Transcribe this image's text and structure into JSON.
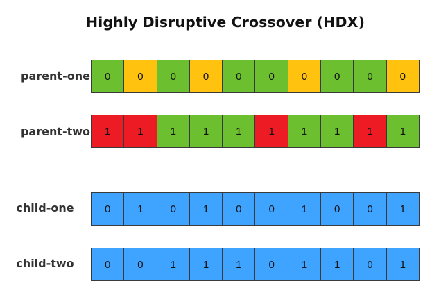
{
  "title": "Highly Disruptive Crossover (HDX)",
  "colors": {
    "green": "#6cbf2e",
    "yellow": "#ffc20e",
    "red": "#ed1c24",
    "blue": "#3fa4ff",
    "cell_border": "#3a3a3a"
  },
  "rows": [
    {
      "label": "parent-one",
      "cells": [
        {
          "value": "0",
          "color": "green"
        },
        {
          "value": "0",
          "color": "yellow"
        },
        {
          "value": "0",
          "color": "green"
        },
        {
          "value": "0",
          "color": "yellow"
        },
        {
          "value": "0",
          "color": "green"
        },
        {
          "value": "0",
          "color": "green"
        },
        {
          "value": "0",
          "color": "yellow"
        },
        {
          "value": "0",
          "color": "green"
        },
        {
          "value": "0",
          "color": "green"
        },
        {
          "value": "0",
          "color": "yellow"
        }
      ]
    },
    {
      "label": "parent-two",
      "cells": [
        {
          "value": "1",
          "color": "red"
        },
        {
          "value": "1",
          "color": "red"
        },
        {
          "value": "1",
          "color": "green"
        },
        {
          "value": "1",
          "color": "green"
        },
        {
          "value": "1",
          "color": "green"
        },
        {
          "value": "1",
          "color": "red"
        },
        {
          "value": "1",
          "color": "green"
        },
        {
          "value": "1",
          "color": "green"
        },
        {
          "value": "1",
          "color": "red"
        },
        {
          "value": "1",
          "color": "green"
        }
      ]
    },
    {
      "label": "child-one",
      "cells": [
        {
          "value": "0",
          "color": "blue"
        },
        {
          "value": "1",
          "color": "blue"
        },
        {
          "value": "0",
          "color": "blue"
        },
        {
          "value": "1",
          "color": "blue"
        },
        {
          "value": "0",
          "color": "blue"
        },
        {
          "value": "0",
          "color": "blue"
        },
        {
          "value": "1",
          "color": "blue"
        },
        {
          "value": "0",
          "color": "blue"
        },
        {
          "value": "0",
          "color": "blue"
        },
        {
          "value": "1",
          "color": "blue"
        }
      ]
    },
    {
      "label": "child-two",
      "cells": [
        {
          "value": "0",
          "color": "blue"
        },
        {
          "value": "0",
          "color": "blue"
        },
        {
          "value": "1",
          "color": "blue"
        },
        {
          "value": "1",
          "color": "blue"
        },
        {
          "value": "1",
          "color": "blue"
        },
        {
          "value": "0",
          "color": "blue"
        },
        {
          "value": "1",
          "color": "blue"
        },
        {
          "value": "1",
          "color": "blue"
        },
        {
          "value": "0",
          "color": "blue"
        },
        {
          "value": "1",
          "color": "blue"
        }
      ]
    }
  ]
}
